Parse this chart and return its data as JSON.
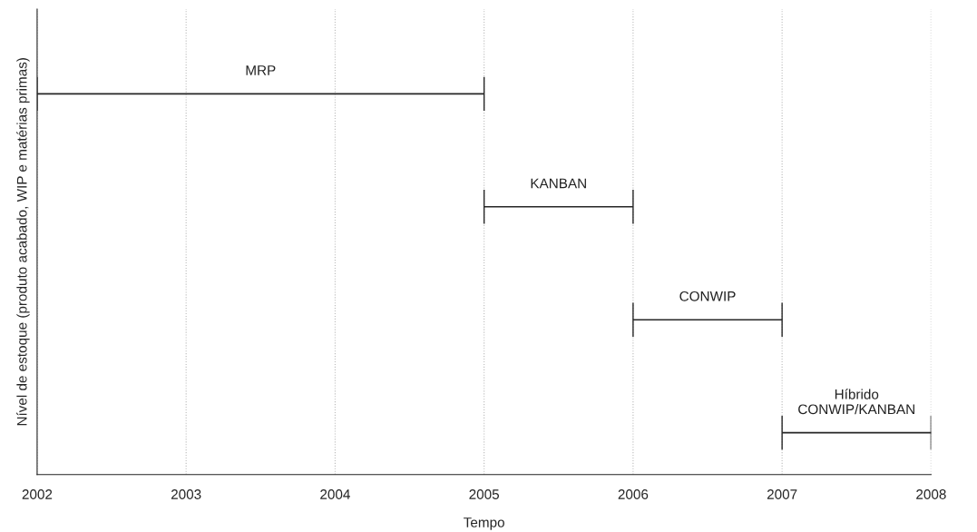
{
  "chart_data": {
    "type": "bar",
    "orientation": "horizontal",
    "categories": [
      "MRP",
      "KANBAN",
      "CONWIP",
      "Híbrido\nCONWIP/KANBAN"
    ],
    "base": [
      2002,
      2005,
      2006,
      2007
    ],
    "values": [
      3,
      1,
      1,
      1
    ],
    "color": "#262626",
    "xlim": [
      2002,
      2008
    ],
    "xticks": [
      2002,
      2003,
      2004,
      2005,
      2006,
      2007,
      2008
    ],
    "xlabel": "Tempo",
    "ylabel": "Nível de estoque (produto acabado, WIP e matérias primas)",
    "grid": "x",
    "tick_labels": "x"
  }
}
